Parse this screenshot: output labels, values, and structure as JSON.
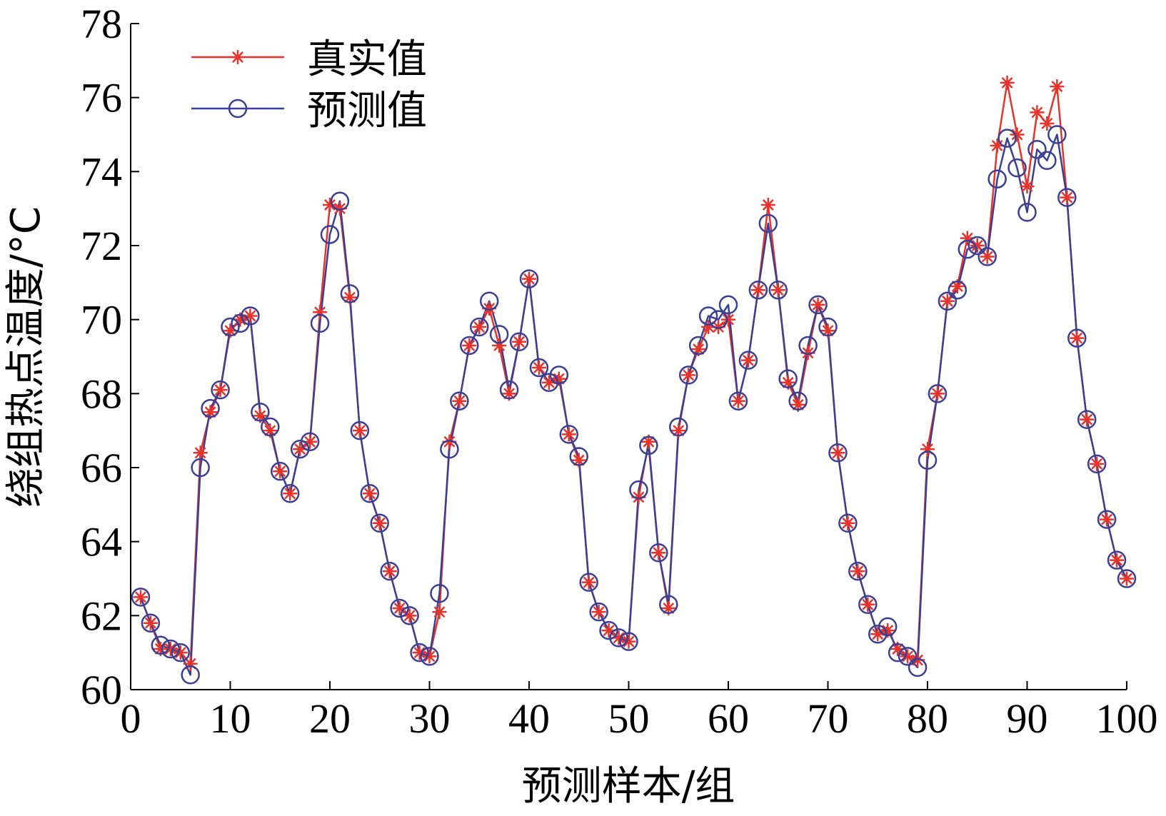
{
  "chart_data": {
    "type": "line",
    "xlabel": "预测样本/组",
    "ylabel": "绕组热点温度/°C",
    "xlim": [
      0,
      100
    ],
    "ylim": [
      60,
      78
    ],
    "xticks": [
      0,
      10,
      20,
      30,
      40,
      50,
      60,
      70,
      80,
      90,
      100
    ],
    "yticks": [
      60,
      62,
      64,
      66,
      68,
      70,
      72,
      74,
      76,
      78
    ],
    "grid": false,
    "legend_position": "top-left",
    "x": [
      1,
      2,
      3,
      4,
      5,
      6,
      7,
      8,
      9,
      10,
      11,
      12,
      13,
      14,
      15,
      16,
      17,
      18,
      19,
      20,
      21,
      22,
      23,
      24,
      25,
      26,
      27,
      28,
      29,
      30,
      31,
      32,
      33,
      34,
      35,
      36,
      37,
      38,
      39,
      40,
      41,
      42,
      43,
      44,
      45,
      46,
      47,
      48,
      49,
      50,
      51,
      52,
      53,
      54,
      55,
      56,
      57,
      58,
      59,
      60,
      61,
      62,
      63,
      64,
      65,
      66,
      67,
      68,
      69,
      70,
      71,
      72,
      73,
      74,
      75,
      76,
      77,
      78,
      79,
      80,
      81,
      82,
      83,
      84,
      85,
      86,
      87,
      88,
      89,
      90,
      91,
      92,
      93,
      94,
      95,
      96,
      97,
      98,
      99,
      100
    ],
    "series": [
      {
        "name": "真实值",
        "color": "#e8322a",
        "marker": "asterisk",
        "values": [
          62.5,
          61.8,
          61.1,
          61.1,
          61.0,
          60.7,
          66.4,
          67.5,
          68.1,
          69.7,
          70.0,
          70.1,
          67.4,
          67.0,
          65.9,
          65.3,
          66.5,
          66.7,
          70.2,
          73.1,
          73.0,
          70.6,
          67.0,
          65.3,
          64.5,
          63.2,
          62.2,
          62.0,
          61.0,
          60.9,
          62.1,
          66.7,
          67.8,
          69.3,
          69.8,
          70.3,
          69.3,
          68.0,
          69.4,
          71.1,
          68.7,
          68.3,
          68.4,
          66.9,
          66.2,
          62.9,
          62.1,
          61.6,
          61.4,
          61.3,
          65.2,
          66.7,
          63.7,
          62.2,
          67.0,
          68.5,
          69.2,
          69.8,
          69.8,
          70.0,
          67.8,
          68.9,
          70.8,
          73.1,
          70.8,
          68.3,
          67.7,
          69.1,
          70.4,
          69.7,
          66.4,
          64.5,
          63.2,
          62.3,
          61.5,
          61.6,
          61.1,
          60.9,
          60.8,
          66.5,
          68.0,
          70.5,
          70.9,
          72.2,
          72.0,
          71.7,
          74.7,
          76.4,
          75.0,
          73.6,
          75.6,
          75.3,
          76.3,
          73.3,
          69.5,
          67.3,
          66.1,
          64.6,
          63.5,
          63.0
        ]
      },
      {
        "name": "预测值",
        "color": "#3a3f93",
        "marker": "circle",
        "values": [
          62.5,
          61.8,
          61.2,
          61.1,
          61.0,
          60.4,
          66.0,
          67.6,
          68.1,
          69.8,
          69.9,
          70.1,
          67.5,
          67.1,
          65.9,
          65.3,
          66.5,
          66.7,
          69.9,
          72.3,
          73.2,
          70.7,
          67.0,
          65.3,
          64.5,
          63.2,
          62.2,
          62.0,
          61.0,
          60.9,
          62.6,
          66.5,
          67.8,
          69.3,
          69.8,
          70.5,
          69.6,
          68.1,
          69.4,
          71.1,
          68.7,
          68.3,
          68.5,
          66.9,
          66.3,
          62.9,
          62.1,
          61.6,
          61.4,
          61.3,
          65.4,
          66.6,
          63.7,
          62.3,
          67.1,
          68.5,
          69.3,
          70.1,
          70.0,
          70.4,
          67.8,
          68.9,
          70.8,
          72.6,
          70.8,
          68.4,
          67.8,
          69.3,
          70.4,
          69.8,
          66.4,
          64.5,
          63.2,
          62.3,
          61.5,
          61.7,
          61.0,
          60.9,
          60.6,
          66.2,
          68.0,
          70.5,
          70.8,
          71.9,
          72.0,
          71.7,
          73.8,
          74.9,
          74.1,
          72.9,
          74.6,
          74.3,
          75.0,
          73.3,
          69.5,
          67.3,
          66.1,
          64.6,
          63.5,
          63.0
        ]
      }
    ]
  }
}
